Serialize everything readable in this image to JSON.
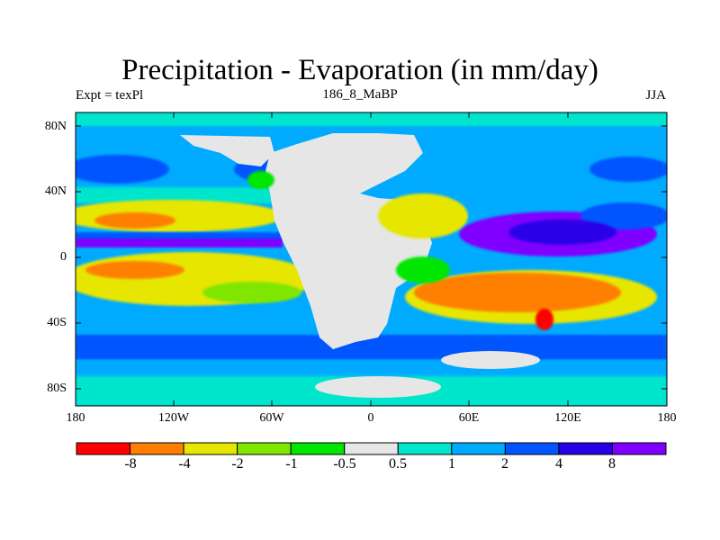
{
  "title": "Precipitation - Evaporation (in mm/day)",
  "subtitle_left": "Expt = texPl",
  "subtitle_center": "186_8_MaBP",
  "subtitle_right": "JJA",
  "y_ticks": [
    "80N",
    "40N",
    "0",
    "40S",
    "80S"
  ],
  "x_ticks": [
    "180",
    "120W",
    "60W",
    "0",
    "60E",
    "120E",
    "180"
  ],
  "colorbar": {
    "labels": [
      "-8",
      "-4",
      "-2",
      "-1",
      "-0.5",
      "0.5",
      "1",
      "2",
      "4",
      "8"
    ],
    "colors": [
      "#ff0000",
      "#ff8000",
      "#e6e600",
      "#80e600",
      "#00e600",
      "#e6e6e6",
      "#00e6cc",
      "#00aaff",
      "#0055ff",
      "#2a00e6",
      "#8000ff"
    ]
  },
  "map_colors": {
    "land": "#e6e6e6",
    "strong_negative": "#ff8000",
    "extreme_negative": "#ff0000",
    "moderate_negative": "#e6e600",
    "weak_negative": "#80e600",
    "slight_negative": "#00e600",
    "weak_positive": "#00e6cc",
    "moderate_positive": "#00aaff",
    "strong_positive": "#0055ff",
    "very_positive": "#2a00e6",
    "extreme_positive": "#8000ff"
  }
}
